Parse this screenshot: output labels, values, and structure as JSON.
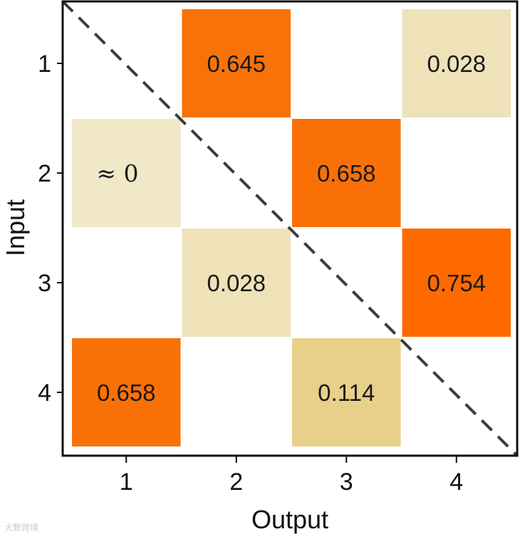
{
  "chart_data": {
    "type": "heatmap",
    "xlabel": "Output",
    "ylabel": "Input",
    "x_categories": [
      "1",
      "2",
      "3",
      "4"
    ],
    "y_categories": [
      "1",
      "2",
      "3",
      "4"
    ],
    "cells": [
      {
        "input": "1",
        "output": "2",
        "value": 0.645,
        "label": "0.645"
      },
      {
        "input": "1",
        "output": "4",
        "value": 0.028,
        "label": "0.028"
      },
      {
        "input": "2",
        "output": "1",
        "value": 0.0,
        "label": "≈ 0"
      },
      {
        "input": "2",
        "output": "3",
        "value": 0.658,
        "label": "0.658"
      },
      {
        "input": "3",
        "output": "2",
        "value": 0.028,
        "label": "0.028"
      },
      {
        "input": "3",
        "output": "4",
        "value": 0.754,
        "label": "0.754"
      },
      {
        "input": "4",
        "output": "1",
        "value": 0.658,
        "label": "0.658"
      },
      {
        "input": "4",
        "output": "3",
        "value": 0.114,
        "label": "0.114"
      }
    ],
    "diagonal_line": "dashed",
    "colormap": {
      "low": "#f1e8c8",
      "mid": "#e8d08a",
      "high": "#ff6a00"
    }
  },
  "watermark": "大数跨境"
}
